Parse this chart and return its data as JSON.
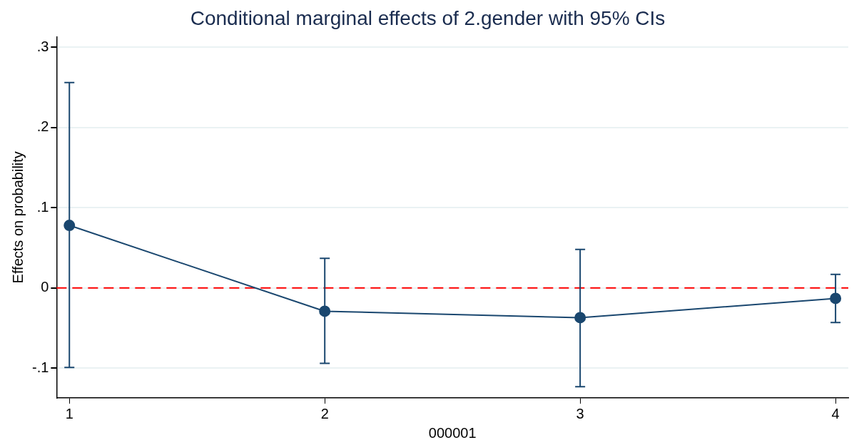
{
  "chart_data": {
    "type": "line",
    "title": "Conditional marginal effects of 2.gender with 95% CIs",
    "xlabel": "000001",
    "ylabel": "Effects on probability",
    "x": [
      1,
      2,
      3,
      4
    ],
    "series": [
      {
        "color": "#1a476f",
        "values": [
          0.078,
          -0.029,
          -0.037,
          -0.013
        ],
        "errors": [
          [
            -0.099,
            0.256
          ],
          [
            -0.094,
            0.037
          ],
          [
            -0.123,
            0.048
          ],
          [
            -0.043,
            0.017
          ]
        ]
      }
    ],
    "xlim": [
      0.95,
      4.05
    ],
    "xticks": [
      1,
      2,
      3,
      4
    ],
    "ylim": [
      -0.137,
      0.313
    ],
    "yticks": [
      {
        "value": -0.1,
        "label": "-.1"
      },
      {
        "value": 0,
        "label": "0"
      },
      {
        "value": 0.1,
        "label": ".1"
      },
      {
        "value": 0.2,
        "label": ".2"
      },
      {
        "value": 0.3,
        "label": ".3"
      }
    ],
    "grid": "y",
    "legend": false,
    "marker": "circle",
    "line_style": "solid",
    "ref_lines": [
      {
        "axis": "y",
        "value": 0,
        "color": "#ff0000",
        "line_style": "dashed"
      }
    ]
  }
}
